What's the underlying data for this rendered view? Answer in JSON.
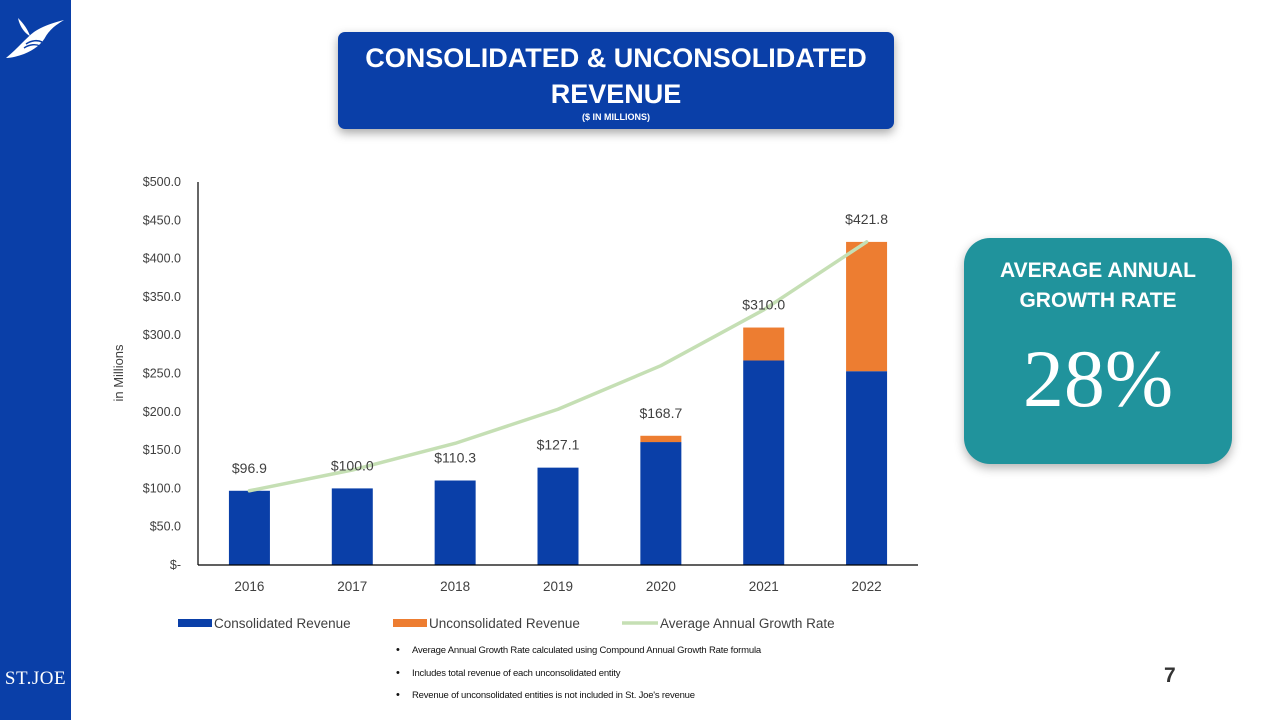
{
  "header": {
    "title": "CONSOLIDATED & UNCONSOLIDATED REVENUE",
    "subtitle": "($ IN MILLIONS)"
  },
  "brand": {
    "logo_icon": "bird-icon",
    "wordmark": "ST.JOE"
  },
  "kpi": {
    "title": "AVERAGE ANNUAL GROWTH RATE",
    "value": "28%"
  },
  "notes": [
    "Average Annual Growth Rate calculated using Compound Annual Growth Rate formula",
    "Includes total revenue of each unconsolidated entity",
    "Revenue of unconsolidated entities is not included in St. Joe's revenue"
  ],
  "page_number": "7",
  "colors": {
    "sidebar": "#0a3fa8",
    "consolidated": "#0a3fa8",
    "unconsolidated": "#ed7d31",
    "growth_line": "#c5dfb4",
    "kpi_box": "#20939c"
  },
  "chart_data": {
    "type": "bar",
    "stacked": true,
    "categories": [
      "2016",
      "2017",
      "2018",
      "2019",
      "2020",
      "2021",
      "2022"
    ],
    "series": [
      {
        "name": "Consolidated Revenue",
        "values": [
          96.9,
          100.0,
          110.3,
          127.1,
          160.5,
          267.0,
          253.0
        ]
      },
      {
        "name": "Unconsolidated Revenue",
        "values": [
          0,
          0,
          0,
          0,
          8.2,
          43.0,
          168.8
        ]
      }
    ],
    "line_series": {
      "name": "Average Annual Growth Rate",
      "values": [
        96.9,
        124.0,
        158.8,
        203.3,
        260.2,
        333.1,
        421.8
      ]
    },
    "totals": [
      96.9,
      100.0,
      110.3,
      127.1,
      168.7,
      310.0,
      421.8
    ],
    "total_labels": [
      "$96.9",
      "$100.0",
      "$110.3",
      "$127.1",
      "$168.7",
      "$310.0",
      "$421.8"
    ],
    "ylabel": "in Millions",
    "ylim": [
      0,
      500
    ],
    "yticks": [
      0,
      50,
      100,
      150,
      200,
      250,
      300,
      350,
      400,
      450,
      500
    ],
    "ytick_labels": [
      "$-",
      "$50.0",
      "$100.0",
      "$150.0",
      "$200.0",
      "$250.0",
      "$300.0",
      "$350.0",
      "$400.0",
      "$450.0",
      "$500.0"
    ],
    "legend": [
      "Consolidated Revenue",
      "Unconsolidated Revenue",
      "Average Annual Growth Rate"
    ],
    "legend_position": "bottom",
    "grid": false
  }
}
